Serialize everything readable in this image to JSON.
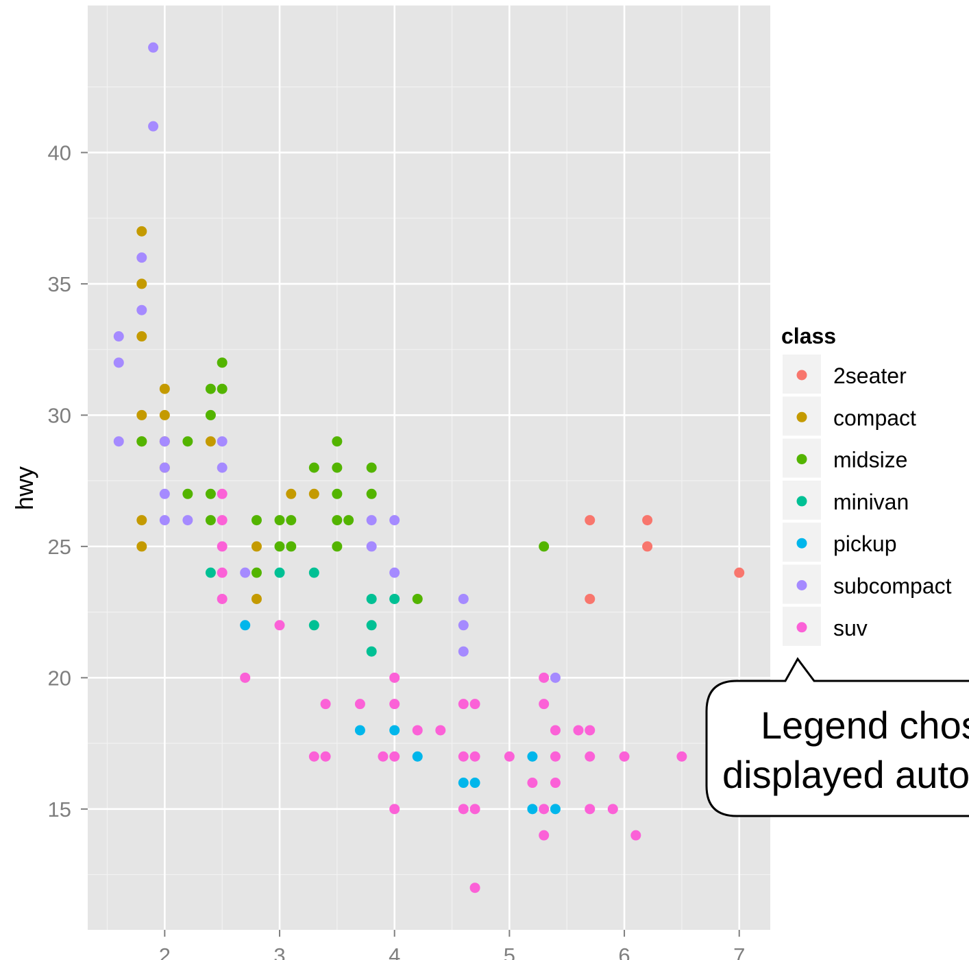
{
  "chart_data": {
    "type": "scatter",
    "title": "",
    "xlabel": "",
    "ylabel": "hwy",
    "xlim": [
      1.33,
      7.27
    ],
    "ylim": [
      10.4,
      45.6
    ],
    "x_ticks": [
      2,
      3,
      4,
      5,
      6,
      7
    ],
    "x_tick_labels": [
      "2",
      "3",
      "4",
      "5",
      "6",
      "7"
    ],
    "y_ticks": [
      15,
      20,
      25,
      30,
      35,
      40
    ],
    "y_tick_labels": [
      "15",
      "20",
      "25",
      "30",
      "35",
      "40"
    ],
    "grid": true,
    "legend": {
      "title": "class",
      "placement": "right",
      "entries": [
        {
          "label": "2seater",
          "color": "#F8766D"
        },
        {
          "label": "compact",
          "color": "#C49A00"
        },
        {
          "label": "midsize",
          "color": "#53B400"
        },
        {
          "label": "minivan",
          "color": "#00C094"
        },
        {
          "label": "pickup",
          "color": "#00B6EB"
        },
        {
          "label": "subcompact",
          "color": "#A58AFF"
        },
        {
          "label": "suv",
          "color": "#FB61D7"
        }
      ]
    },
    "series": [
      {
        "name": "2seater",
        "color": "#F8766D",
        "points": [
          [
            5.7,
            26
          ],
          [
            5.7,
            23
          ],
          [
            6.2,
            26
          ],
          [
            6.2,
            25
          ],
          [
            7.0,
            24
          ]
        ]
      },
      {
        "name": "compact",
        "color": "#C49A00",
        "points": [
          [
            1.8,
            37
          ],
          [
            1.8,
            35
          ],
          [
            1.8,
            33
          ],
          [
            1.8,
            30
          ],
          [
            1.8,
            29
          ],
          [
            1.8,
            26
          ],
          [
            1.8,
            25
          ],
          [
            2.0,
            31
          ],
          [
            2.0,
            30
          ],
          [
            2.0,
            29
          ],
          [
            2.0,
            28
          ],
          [
            2.4,
            29
          ],
          [
            2.8,
            25
          ],
          [
            2.8,
            23
          ],
          [
            3.1,
            27
          ],
          [
            3.3,
            27
          ]
        ]
      },
      {
        "name": "midsize",
        "color": "#53B400",
        "points": [
          [
            1.8,
            29
          ],
          [
            2.2,
            29
          ],
          [
            2.2,
            27
          ],
          [
            2.4,
            31
          ],
          [
            2.4,
            30
          ],
          [
            2.4,
            27
          ],
          [
            2.4,
            26
          ],
          [
            2.5,
            32
          ],
          [
            2.5,
            31
          ],
          [
            2.8,
            26
          ],
          [
            2.8,
            24
          ],
          [
            3.0,
            26
          ],
          [
            3.0,
            25
          ],
          [
            3.1,
            26
          ],
          [
            3.1,
            25
          ],
          [
            3.3,
            28
          ],
          [
            3.5,
            29
          ],
          [
            3.5,
            28
          ],
          [
            3.5,
            27
          ],
          [
            3.5,
            26
          ],
          [
            3.5,
            25
          ],
          [
            3.6,
            26
          ],
          [
            3.8,
            28
          ],
          [
            3.8,
            27
          ],
          [
            4.2,
            23
          ],
          [
            5.3,
            25
          ]
        ]
      },
      {
        "name": "minivan",
        "color": "#00C094",
        "points": [
          [
            2.4,
            24
          ],
          [
            3.0,
            24
          ],
          [
            3.3,
            24
          ],
          [
            3.3,
            22
          ],
          [
            3.8,
            23
          ],
          [
            3.8,
            22
          ],
          [
            3.8,
            21
          ],
          [
            4.0,
            23
          ]
        ]
      },
      {
        "name": "pickup",
        "color": "#00B6EB",
        "points": [
          [
            2.7,
            22
          ],
          [
            3.7,
            18
          ],
          [
            4.0,
            18
          ],
          [
            4.2,
            17
          ],
          [
            4.6,
            16
          ],
          [
            4.7,
            16
          ],
          [
            5.2,
            17
          ],
          [
            5.2,
            15
          ],
          [
            5.4,
            15
          ]
        ]
      },
      {
        "name": "subcompact",
        "color": "#A58AFF",
        "points": [
          [
            1.6,
            33
          ],
          [
            1.6,
            32
          ],
          [
            1.6,
            29
          ],
          [
            1.8,
            36
          ],
          [
            1.8,
            34
          ],
          [
            1.9,
            44
          ],
          [
            1.9,
            41
          ],
          [
            2.0,
            29
          ],
          [
            2.0,
            28
          ],
          [
            2.0,
            27
          ],
          [
            2.0,
            26
          ],
          [
            2.2,
            26
          ],
          [
            2.5,
            29
          ],
          [
            2.5,
            28
          ],
          [
            2.7,
            24
          ],
          [
            3.8,
            26
          ],
          [
            3.8,
            25
          ],
          [
            4.0,
            26
          ],
          [
            4.0,
            24
          ],
          [
            4.6,
            23
          ],
          [
            4.6,
            22
          ],
          [
            4.6,
            21
          ],
          [
            5.4,
            20
          ]
        ]
      },
      {
        "name": "suv",
        "color": "#FB61D7",
        "points": [
          [
            2.5,
            27
          ],
          [
            2.5,
            26
          ],
          [
            2.5,
            25
          ],
          [
            2.5,
            24
          ],
          [
            2.5,
            23
          ],
          [
            2.7,
            20
          ],
          [
            3.0,
            22
          ],
          [
            3.3,
            17
          ],
          [
            3.4,
            19
          ],
          [
            3.4,
            17
          ],
          [
            3.7,
            19
          ],
          [
            3.9,
            17
          ],
          [
            4.0,
            20
          ],
          [
            4.0,
            19
          ],
          [
            4.0,
            17
          ],
          [
            4.0,
            15
          ],
          [
            4.2,
            18
          ],
          [
            4.4,
            18
          ],
          [
            4.6,
            19
          ],
          [
            4.6,
            17
          ],
          [
            4.6,
            15
          ],
          [
            4.7,
            19
          ],
          [
            4.7,
            17
          ],
          [
            4.7,
            15
          ],
          [
            4.7,
            12
          ],
          [
            5.0,
            17
          ],
          [
            5.2,
            16
          ],
          [
            5.3,
            20
          ],
          [
            5.3,
            19
          ],
          [
            5.3,
            15
          ],
          [
            5.3,
            14
          ],
          [
            5.4,
            18
          ],
          [
            5.4,
            17
          ],
          [
            5.4,
            16
          ],
          [
            5.6,
            18
          ],
          [
            5.7,
            18
          ],
          [
            5.7,
            17
          ],
          [
            5.7,
            15
          ],
          [
            5.9,
            15
          ],
          [
            6.0,
            17
          ],
          [
            6.1,
            14
          ],
          [
            6.5,
            17
          ]
        ]
      }
    ]
  },
  "callout": {
    "line1": "Legend chosen and",
    "line2": "displayed automatically."
  },
  "colors": {
    "panel_bg": "#E5E5E5",
    "grid_major": "#FFFFFF",
    "grid_minor": "#F2F2F2",
    "legend_key_bg": "#F2F2F2"
  }
}
